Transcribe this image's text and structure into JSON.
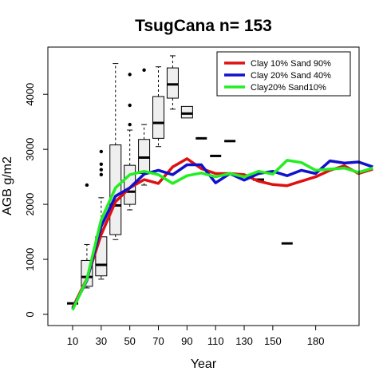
{
  "chart_data": {
    "type": "line",
    "title": "TsugCana n= 153",
    "xlabel": "Year",
    "ylabel": "AGB g/m2",
    "ylim": [
      -150,
      4750
    ],
    "y_ticks": [
      0,
      1000,
      2000,
      3000,
      4000
    ],
    "x_tick_labels": [
      "10",
      "30",
      "50",
      "70",
      "90",
      "110",
      "130",
      "150",
      "180"
    ],
    "categories": [
      "10",
      "20",
      "30",
      "40",
      "50",
      "60",
      "70",
      "80",
      "90",
      "100",
      "110",
      "120",
      "130",
      "140",
      "150",
      "160",
      "170",
      "180",
      "190",
      "200",
      "210",
      "220"
    ],
    "grid": false,
    "legend_position": "top-right",
    "series": [
      {
        "name": "Clay 10% Sand 90%",
        "color": "#dd1111",
        "values": [
          120,
          650,
          1450,
          2050,
          2300,
          2450,
          2380,
          2680,
          2830,
          2650,
          2560,
          2560,
          2540,
          2420,
          2360,
          2340,
          2420,
          2500,
          2620,
          2700,
          2560,
          2640
        ]
      },
      {
        "name": "Clay 20% Sand 40%",
        "color": "#1111cc",
        "values": [
          100,
          620,
          1600,
          2150,
          2300,
          2550,
          2620,
          2540,
          2720,
          2720,
          2390,
          2560,
          2440,
          2560,
          2600,
          2520,
          2620,
          2560,
          2790,
          2750,
          2770,
          2680
        ]
      },
      {
        "name": "Clay20% Sand10%",
        "color": "#22ee22",
        "values": [
          80,
          640,
          1720,
          2300,
          2540,
          2600,
          2540,
          2380,
          2520,
          2570,
          2500,
          2560,
          2500,
          2600,
          2550,
          2800,
          2760,
          2620,
          2640,
          2660,
          2580,
          2660
        ]
      }
    ],
    "boxplots": [
      {
        "x": "10",
        "median": 200,
        "q1": 200,
        "q3": 200,
        "whisker_low": 200,
        "whisker_high": 200,
        "outliers": []
      },
      {
        "x": "20",
        "median": 680,
        "q1": 510,
        "q3": 980,
        "whisker_low": 480,
        "whisker_high": 1270,
        "outliers": [
          2350
        ]
      },
      {
        "x": "30",
        "median": 900,
        "q1": 700,
        "q3": 1410,
        "whisker_low": 640,
        "whisker_high": 2120,
        "outliers": [
          2540,
          2630,
          2730,
          2960
        ]
      },
      {
        "x": "40",
        "median": 1980,
        "q1": 1450,
        "q3": 3080,
        "whisker_low": 1360,
        "whisker_high": 4560,
        "outliers": []
      },
      {
        "x": "50",
        "median": 2230,
        "q1": 2000,
        "q3": 2710,
        "whisker_low": 1900,
        "whisker_high": 3350,
        "outliers": [
          3450,
          3800,
          4360
        ]
      },
      {
        "x": "60",
        "median": 2850,
        "q1": 2560,
        "q3": 3180,
        "whisker_low": 2350,
        "whisker_high": 3450,
        "outliers": [
          4440
        ]
      },
      {
        "x": "70",
        "median": 3480,
        "q1": 3200,
        "q3": 3960,
        "whisker_low": 3050,
        "whisker_high": 4500,
        "outliers": []
      },
      {
        "x": "80",
        "median": 4180,
        "q1": 3930,
        "q3": 4480,
        "whisker_low": 3730,
        "whisker_high": 4700,
        "outliers": []
      },
      {
        "x": "90",
        "median": 3650,
        "q1": 3570,
        "q3": 3780,
        "whisker_low": 3570,
        "whisker_high": 3780,
        "outliers": []
      },
      {
        "x": "100",
        "median": 3200,
        "q1": 3200,
        "q3": 3200,
        "whisker_low": 3200,
        "whisker_high": 3200,
        "outliers": []
      },
      {
        "x": "110",
        "median": 2880,
        "q1": 2880,
        "q3": 2880,
        "whisker_low": 2880,
        "whisker_high": 2880,
        "outliers": []
      },
      {
        "x": "120",
        "median": 3150,
        "q1": 3150,
        "q3": 3150,
        "whisker_low": 3150,
        "whisker_high": 3150,
        "outliers": []
      },
      {
        "x": "140",
        "median": 2450,
        "q1": 2450,
        "q3": 2450,
        "whisker_low": 2450,
        "whisker_high": 2450,
        "outliers": []
      },
      {
        "x": "160",
        "median": 1290,
        "q1": 1290,
        "q3": 1290,
        "whisker_low": 1290,
        "whisker_high": 1290,
        "outliers": []
      }
    ]
  }
}
